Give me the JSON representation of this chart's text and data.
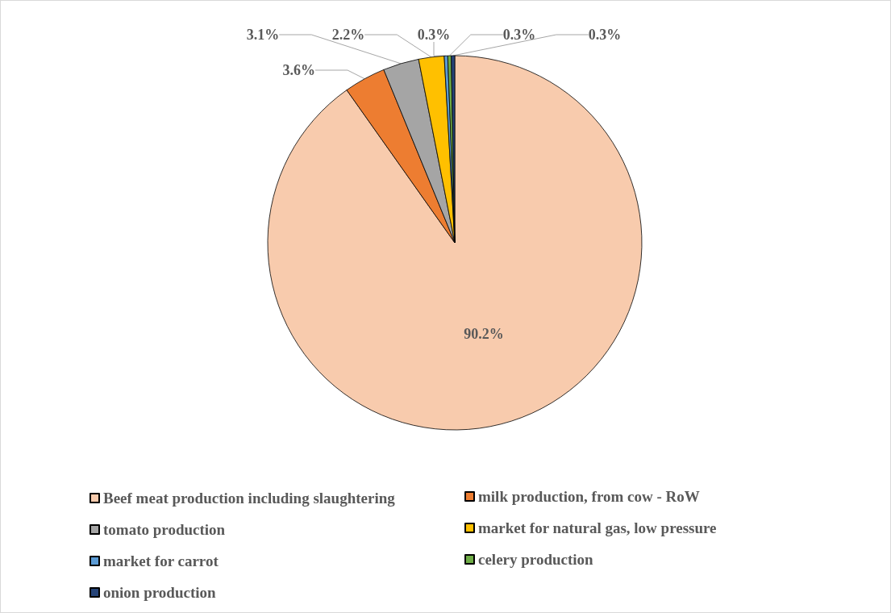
{
  "chart_data": {
    "type": "pie",
    "categories": [
      "Beef meat production including slaughtering",
      "milk production, from cow - RoW",
      "tomato production",
      "market for natural gas, low pressure",
      "market for carrot",
      "celery production",
      "onion production"
    ],
    "values": [
      90.2,
      3.6,
      3.1,
      2.2,
      0.3,
      0.3,
      0.3
    ],
    "colors": [
      "#f8cbad",
      "#ed7d31",
      "#a5a5a5",
      "#ffc000",
      "#5b9bd5",
      "#70ad47",
      "#264478"
    ],
    "value_labels": [
      "90.2%",
      "3.6%",
      "3.1%",
      "2.2%",
      "0.3%",
      "0.3%",
      "0.3%"
    ],
    "legend": "bottom"
  }
}
